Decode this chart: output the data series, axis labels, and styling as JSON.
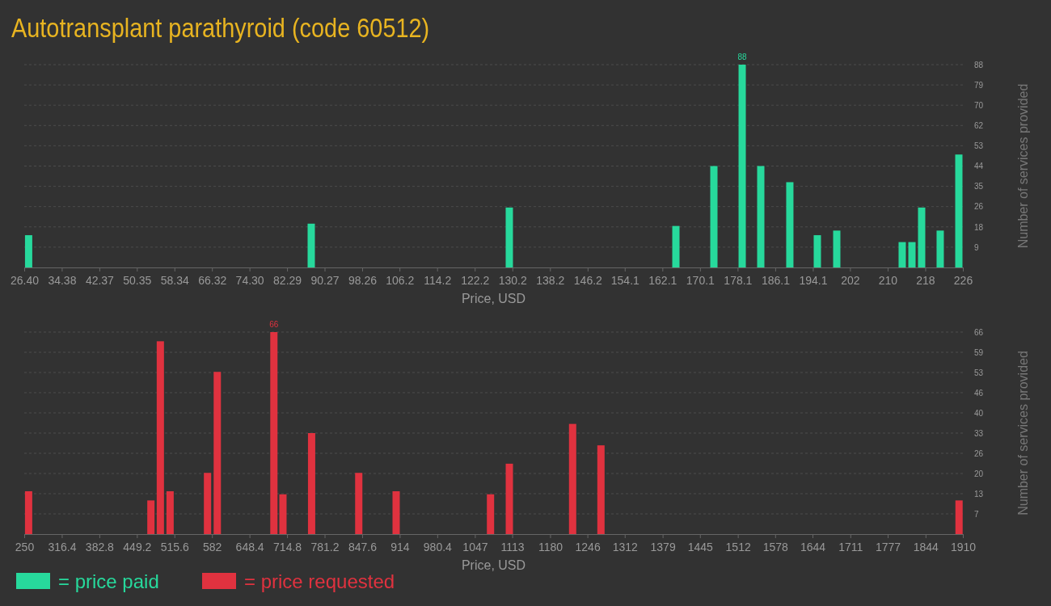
{
  "chart_data": [
    {
      "type": "bar",
      "title": "Autotransplant parathyroid (code 60512)",
      "xlabel": "Price, USD",
      "ylabel": "Number of services provided",
      "x": [
        27.33,
        87.43,
        129.55,
        164.97,
        173.05,
        179.07,
        183.02,
        189.2,
        195.05,
        199.18,
        213.1,
        215.17,
        217.23,
        221.18,
        225.14
      ],
      "series": [
        {
          "name": "= price paid",
          "color": "#27d99c",
          "values": [
            14,
            19,
            26,
            18,
            44,
            88,
            44,
            37,
            14,
            16,
            11,
            11,
            26,
            16,
            49
          ],
          "value_labels": [
            null,
            null,
            null,
            null,
            null,
            "88",
            null,
            null,
            null,
            null,
            null,
            null,
            null,
            null,
            null
          ]
        }
      ],
      "xlim": [
        26.4,
        226
      ],
      "xticks": [
        {
          "value": 26.4,
          "label": "26.40"
        },
        34.38,
        42.37,
        50.35,
        58.34,
        66.32,
        {
          "value": 74.3,
          "label": "74.30"
        },
        82.29,
        90.27,
        98.26,
        106.2,
        114.2,
        122.2,
        130.2,
        138.2,
        146.2,
        154.1,
        162.1,
        170.1,
        178.1,
        186.1,
        194.1,
        202,
        210,
        218,
        226
      ],
      "ylim": [
        0,
        88
      ],
      "yticks": [
        {
          "value": 8.8,
          "label": "9"
        },
        {
          "value": 17.6,
          "label": "18"
        },
        {
          "value": 26.4,
          "label": "26"
        },
        {
          "value": 35.2,
          "label": "35"
        },
        44,
        {
          "value": 52.8,
          "label": "53"
        },
        {
          "value": 61.6,
          "label": "62"
        },
        {
          "value": 70.4,
          "label": "70"
        },
        {
          "value": 79.2,
          "label": "79"
        },
        88
      ],
      "grid": "y",
      "legend": "bottom left"
    },
    {
      "type": "bar",
      "xlabel": "Price, USD",
      "ylabel": "Number of services provided",
      "x": [
        257.7,
        474.0,
        490.7,
        507.9,
        574.1,
        591.4,
        691.5,
        707.5,
        758.2,
        841.6,
        907.7,
        1074.6,
        1107.9,
        1219.8,
        1269.9,
        1903.2
      ],
      "series": [
        {
          "name": "= price requested",
          "color": "#e0323f",
          "values": [
            14,
            11,
            63,
            14,
            20,
            53,
            66,
            13,
            33,
            20,
            14,
            13,
            23,
            36,
            29,
            11
          ],
          "value_labels": [
            null,
            null,
            null,
            null,
            null,
            null,
            "66",
            null,
            null,
            null,
            null,
            null,
            null,
            null,
            null,
            null
          ]
        }
      ],
      "xlim": [
        250,
        1910
      ],
      "xticks": [
        250,
        316.4,
        382.8,
        449.2,
        515.6,
        582,
        648.4,
        714.8,
        781.2,
        847.6,
        914,
        980.4,
        1047,
        1113,
        1180,
        1246,
        1312,
        1379,
        1445,
        1512,
        1578,
        1644,
        1711,
        1777,
        1844,
        1910
      ],
      "ylim": [
        0,
        66
      ],
      "yticks": [
        {
          "value": 6.6,
          "label": "7"
        },
        {
          "value": 13.2,
          "label": "13"
        },
        {
          "value": 19.8,
          "label": "20"
        },
        {
          "value": 26.4,
          "label": "26"
        },
        33,
        {
          "value": 39.6,
          "label": "40"
        },
        {
          "value": 46.2,
          "label": "46"
        },
        {
          "value": 52.8,
          "label": "53"
        },
        {
          "value": 59.4,
          "label": "59"
        },
        66
      ],
      "grid": "y",
      "legend": "bottom left"
    }
  ]
}
